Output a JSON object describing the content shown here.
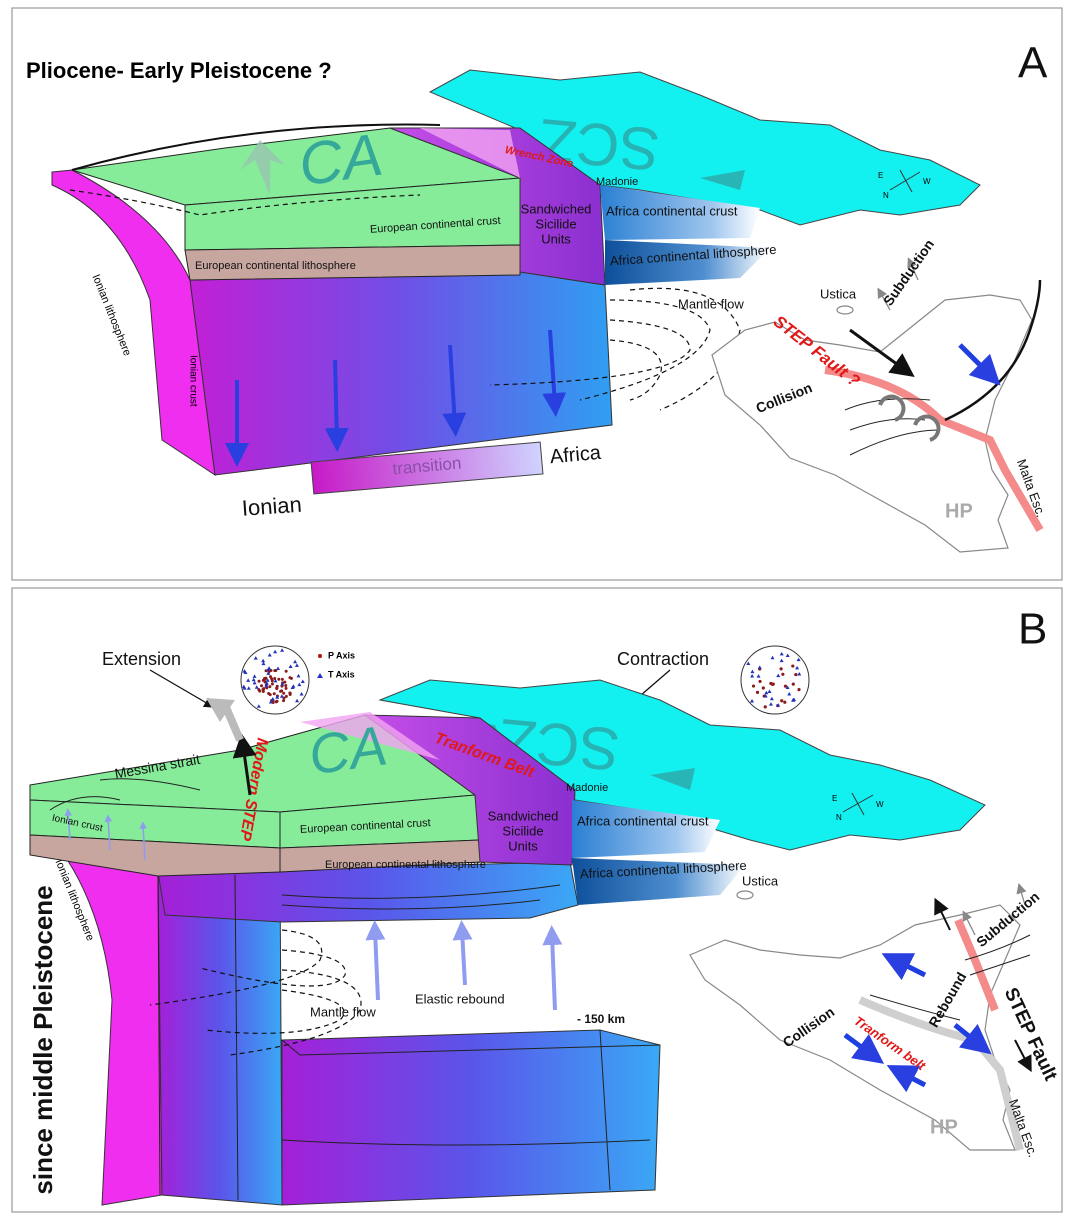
{
  "panel_a": {
    "letter": "A",
    "title": "Pliocene- Early Pleistocene ?",
    "block": {
      "ca": "CA",
      "scz": "SCZ",
      "wrench_zone": "Wrench Zone",
      "madonie": "Madonie",
      "sicilide": [
        "Sandwiched",
        "Sicilide",
        "Units"
      ],
      "africa_crust": "Africa continental crust",
      "africa_lithosphere": "Africa continental lithosphere",
      "european_crust": "European continental crust",
      "european_lithosphere": "European continental lithosphere",
      "ionian_lithosphere": "Ionian lithosphere",
      "ionian_crust": "Ionian crust",
      "mantle_flow": "Mantle flow"
    },
    "compass": [
      "W",
      "E",
      "N"
    ],
    "legend": {
      "left": "Ionian",
      "middle": "transition",
      "right": "Africa"
    },
    "map": {
      "ustica": "Ustica",
      "subduction": "Subduction",
      "step_fault": "STEP Fault ?",
      "collision": "Collision",
      "malta": "Malta Esc.",
      "hp": "HP"
    }
  },
  "panel_b": {
    "letter": "B",
    "title": "since middle Pleistocene",
    "extension": "Extension",
    "contraction": "Contraction",
    "stereonet": {
      "p_axis": "P Axis",
      "t_axis": "T Axis"
    },
    "block": {
      "messina": "Messina strait",
      "modern_step": "Modern STEP",
      "ca": "CA",
      "scz": "SCZ",
      "transform_belt": "Tranform Belt",
      "madonie": "Madonie",
      "sicilide": [
        "Sandwiched",
        "Sicilide",
        "Units"
      ],
      "africa_crust": "Africa continental crust",
      "africa_lithosphere": "Africa continental lithosphere",
      "european_crust": "European continental crust",
      "european_lithosphere": "European continental lithosphere",
      "ionian_crust": "Ionian crust",
      "ionian_lithosphere": "Ionian lithosphere",
      "mantle_flow": "Mantle flow",
      "elastic_rebound": "Elastic rebound",
      "depth": "- 150 km"
    },
    "compass": [
      "W",
      "E",
      "N"
    ],
    "map": {
      "ustica": "Ustica",
      "subduction": "Subduction",
      "rebound": "Rebound",
      "step_fault": "STEP Fault",
      "collision": "Collision",
      "transform_belt": "Tranform belt",
      "hp": "HP",
      "malta": "Malta Esc."
    }
  }
}
